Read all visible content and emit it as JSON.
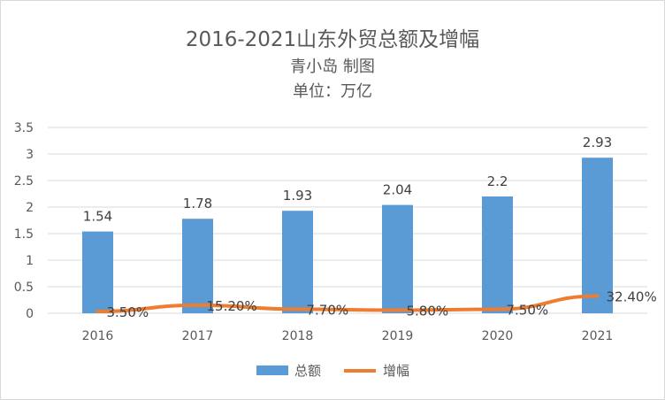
{
  "chart_data": {
    "type": "bar+line",
    "title": "2016-2021山东外贸总额及增幅",
    "subtitle": "青小岛 制图",
    "unit": "单位：万亿",
    "categories": [
      "2016",
      "2017",
      "2018",
      "2019",
      "2020",
      "2021"
    ],
    "series": [
      {
        "name": "总额",
        "type": "bar",
        "color": "#5b9bd5",
        "values": [
          1.54,
          1.78,
          1.93,
          2.04,
          2.2,
          2.93
        ],
        "labels": [
          "1.54",
          "1.78",
          "1.93",
          "2.04",
          "2.2",
          "2.93"
        ]
      },
      {
        "name": "增幅",
        "type": "line",
        "color": "#ed7d31",
        "values": [
          0.035,
          0.152,
          0.077,
          0.058,
          0.075,
          0.324
        ],
        "labels": [
          "3.50%",
          "15.20%",
          "7.70%",
          "5.80%",
          "7.50%",
          "32.40%"
        ]
      }
    ],
    "y_ticks": [
      "0",
      "0.5",
      "1",
      "1.5",
      "2",
      "2.5",
      "3",
      "3.5"
    ],
    "ylim": [
      0,
      3.5
    ],
    "grid": true,
    "legend_position": "bottom"
  }
}
